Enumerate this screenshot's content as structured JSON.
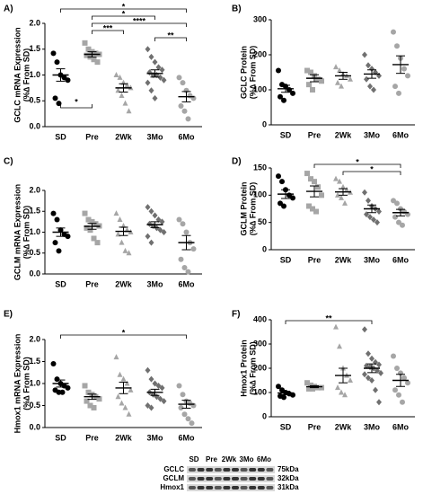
{
  "chart_data": [
    {
      "type": "dotplot",
      "panel": "A)",
      "ylabel": [
        "GCLC mRNA Expression",
        "(%∆ From SD)"
      ],
      "categories": [
        "SD",
        "Pre",
        "2Wk",
        "3Mo",
        "6Mo"
      ],
      "points": [
        [
          1.42,
          1.25,
          1.0,
          0.95,
          0.9,
          0.55,
          0.45
        ],
        [
          1.62,
          1.5,
          1.45,
          1.42,
          1.4,
          1.38,
          1.35,
          1.3,
          1.25
        ],
        [
          1.0,
          0.95,
          0.85,
          0.8,
          0.75,
          0.7,
          0.6,
          0.45,
          0.3
        ],
        [
          1.5,
          1.35,
          1.25,
          1.15,
          1.1,
          1.05,
          1.0,
          1.0,
          0.95,
          0.9,
          0.85,
          0.7,
          0.55
        ],
        [
          0.95,
          0.85,
          0.7,
          0.6,
          0.55,
          0.4,
          0.3,
          0.15
        ]
      ],
      "means": [
        1.0,
        1.4,
        0.75,
        1.03,
        0.58
      ],
      "sems": [
        0.12,
        0.05,
        0.08,
        0.07,
        0.1
      ],
      "ylim": [
        0,
        2
      ],
      "yticks": [
        {
          "value": 0,
          "label": "0.0"
        },
        0.5,
        {
          "value": 1,
          "label": "1.0"
        },
        1.5,
        {
          "value": 2,
          "label": "2.0"
        }
      ],
      "brackets": [
        {
          "groups": [
            "SD",
            "6Mo"
          ],
          "label": "*"
        },
        {
          "groups": [
            "Pre",
            "3Mo"
          ],
          "label": "*"
        },
        {
          "groups": [
            "Pre",
            "6Mo"
          ],
          "label": "****"
        },
        {
          "groups": [
            "Pre",
            "2Wk"
          ],
          "label": "***"
        },
        {
          "groups": [
            "3Mo",
            "6Mo"
          ],
          "label": "**"
        },
        {
          "groups": [
            "SD",
            "Pre"
          ],
          "label": "*",
          "below": true
        }
      ]
    },
    {
      "type": "dotplot",
      "panel": "B)",
      "ylabel": [
        "GCLC Protein",
        "(%∆ From SD)"
      ],
      "categories": [
        "SD",
        "Pre",
        "2Wk",
        "3Mo",
        "6Mo"
      ],
      "points": [
        [
          155,
          115,
          110,
          100,
          90,
          80,
          70
        ],
        [
          155,
          150,
          140,
          130,
          125,
          115,
          100
        ],
        [
          165,
          155,
          145,
          140,
          130,
          120,
          110
        ],
        [
          200,
          170,
          160,
          150,
          140,
          130,
          110,
          100
        ],
        [
          265,
          225,
          190,
          160,
          140,
          110,
          90
        ]
      ],
      "means": [
        103,
        133,
        140,
        145,
        172
      ],
      "sems": [
        10,
        10,
        10,
        12,
        25
      ],
      "ylim": [
        0,
        300
      ],
      "yticks": [
        0,
        100,
        200,
        300
      ],
      "brackets": []
    },
    {
      "type": "dotplot",
      "panel": "C)",
      "ylabel": [
        "GCLM mRNA Expression",
        "(%∆ From SD)"
      ],
      "categories": [
        "SD",
        "Pre",
        "2Wk",
        "3Mo",
        "6Mo"
      ],
      "points": [
        [
          1.45,
          1.3,
          1.05,
          0.95,
          0.9,
          0.75,
          0.55
        ],
        [
          1.45,
          1.3,
          1.25,
          1.2,
          1.15,
          1.1,
          1.05,
          0.85,
          0.75
        ],
        [
          1.45,
          1.3,
          1.15,
          1.05,
          1.0,
          0.95,
          0.75,
          0.55,
          0.5
        ],
        [
          1.6,
          1.5,
          1.4,
          1.3,
          1.25,
          1.2,
          1.15,
          1.1,
          1.05,
          1.0,
          0.9,
          0.75
        ],
        [
          1.3,
          1.2,
          1.0,
          0.75,
          0.6,
          0.35,
          0.15,
          0.05
        ]
      ],
      "means": [
        1.0,
        1.14,
        1.02,
        1.18,
        0.75
      ],
      "sems": [
        0.1,
        0.07,
        0.1,
        0.07,
        0.17
      ],
      "ylim": [
        0,
        2
      ],
      "yticks": [
        {
          "value": 0,
          "label": "0.0"
        },
        0.5,
        {
          "value": 1,
          "label": "1.0"
        },
        1.5,
        {
          "value": 2,
          "label": "2.0"
        }
      ],
      "brackets": []
    },
    {
      "type": "dotplot",
      "panel": "D)",
      "ylabel": [
        "GCLM Protein",
        "(%∆ From SD)"
      ],
      "categories": [
        "SD",
        "Pre",
        "2Wk",
        "3Mo",
        "6Mo"
      ],
      "points": [
        [
          135,
          125,
          110,
          100,
          95,
          85,
          80
        ],
        [
          140,
          130,
          125,
          115,
          100,
          80,
          75,
          70
        ],
        [
          130,
          125,
          115,
          110,
          105,
          100,
          95,
          85
        ],
        [
          105,
          90,
          80,
          75,
          70,
          65,
          60,
          55,
          50
        ],
        [
          90,
          85,
          75,
          70,
          65,
          60,
          50,
          45
        ]
      ],
      "means": [
        102,
        107,
        106,
        75,
        68
      ],
      "sems": [
        8,
        10,
        6,
        7,
        6
      ],
      "ylim": [
        0,
        150
      ],
      "yticks": [
        0,
        50,
        100,
        150
      ],
      "brackets": [
        {
          "groups": [
            "Pre",
            "6Mo"
          ],
          "label": "*"
        },
        {
          "groups": [
            "2Wk",
            "6Mo"
          ],
          "label": "*"
        }
      ]
    },
    {
      "type": "dotplot",
      "panel": "E)",
      "ylabel": [
        "Hmox1 mRNA Expression",
        "(%∆ From SD)"
      ],
      "categories": [
        "SD",
        "Pre",
        "2Wk",
        "3Mo",
        "6Mo"
      ],
      "points": [
        [
          1.45,
          1.1,
          1.0,
          0.95,
          0.9,
          0.85,
          0.8,
          0.8
        ],
        [
          0.95,
          0.8,
          0.75,
          0.7,
          0.65,
          0.6,
          0.5,
          0.45
        ],
        [
          1.6,
          1.2,
          1.1,
          1.0,
          0.85,
          0.7,
          0.55,
          0.45,
          0.3
        ],
        [
          1.3,
          1.1,
          1.0,
          0.95,
          0.9,
          0.8,
          0.75,
          0.7,
          0.65,
          0.6,
          0.5,
          0.45
        ],
        [
          0.95,
          0.75,
          0.6,
          0.55,
          0.5,
          0.45,
          0.3,
          0.2,
          0.1
        ]
      ],
      "means": [
        1.0,
        0.7,
        0.9,
        0.8,
        0.53
      ],
      "sems": [
        0.08,
        0.06,
        0.13,
        0.07,
        0.09
      ],
      "ylim": [
        0,
        2
      ],
      "yticks": [
        {
          "value": 0,
          "label": "0.0"
        },
        0.5,
        {
          "value": 1,
          "label": "1.0"
        },
        1.5,
        {
          "value": 2,
          "label": "2.0"
        }
      ],
      "brackets": [
        {
          "groups": [
            "SD",
            "6Mo"
          ],
          "label": "*"
        }
      ]
    },
    {
      "type": "dotplot",
      "panel": "F)",
      "ylabel": [
        "Hmox1 Protein",
        "(%∆ From SD)"
      ],
      "categories": [
        "SD",
        "Pre",
        "2Wk",
        "3Mo",
        "6Mo"
      ],
      "points": [
        [
          125,
          110,
          100,
          95,
          90,
          85,
          80
        ],
        [
          140,
          130,
          125,
          120,
          120,
          115,
          115
        ],
        [
          370,
          290,
          200,
          170,
          150,
          120,
          100,
          90
        ],
        [
          360,
          260,
          240,
          225,
          215,
          210,
          205,
          200,
          190,
          180,
          175,
          160,
          150,
          110,
          60
        ],
        [
          250,
          200,
          180,
          160,
          140,
          110,
          90,
          60
        ]
      ],
      "means": [
        98,
        124,
        170,
        200,
        150
      ],
      "sems": [
        7,
        4,
        30,
        18,
        25
      ],
      "ylim": [
        0,
        400
      ],
      "yticks": [
        0,
        100,
        200,
        300,
        400
      ],
      "brackets": [
        {
          "groups": [
            "SD",
            "3Mo"
          ],
          "label": "**"
        }
      ]
    }
  ],
  "markers": [
    "circle",
    "square",
    "triangle",
    "diamond",
    "circle"
  ],
  "colors": [
    "#000000",
    "#a6a6a6",
    "#a6a6a6",
    "#707070",
    "#a6a6a6"
  ],
  "blot": {
    "lanes": [
      "SD",
      "Pre",
      "2Wk",
      "3Mo",
      "6Mo"
    ],
    "rows": [
      "GCLC",
      "GCLM",
      "Hmox1"
    ],
    "sizes": [
      "75kDa",
      "32kDa",
      "31kDa"
    ]
  }
}
